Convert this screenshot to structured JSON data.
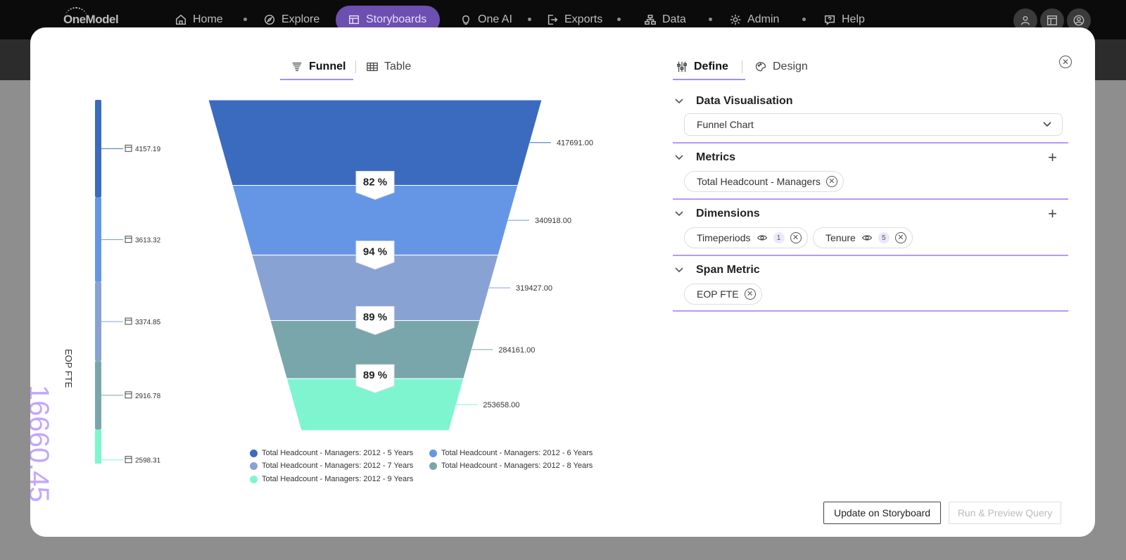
{
  "topnav": {
    "logo": "OneModel",
    "items": [
      {
        "label": "Home",
        "icon": "home-icon"
      },
      {
        "label": "Explore",
        "icon": "compass-icon"
      },
      {
        "label": "Storyboards",
        "icon": "storyboard-icon"
      },
      {
        "label": "One AI",
        "icon": "lightbulb-icon"
      },
      {
        "label": "Exports",
        "icon": "export-icon"
      },
      {
        "label": "Data",
        "icon": "sitemap-icon"
      },
      {
        "label": "Admin",
        "icon": "gear-icon"
      },
      {
        "label": "Help",
        "icon": "help-icon"
      }
    ],
    "active": "Storyboards",
    "colors": {
      "bar": "#0b0b0b",
      "active": "#6c4fb0",
      "text": "#bdbdbd"
    }
  },
  "view_tabs": {
    "funnel": "Funnel",
    "table": "Table",
    "active": "Funnel"
  },
  "panel_tabs": {
    "define": "Define",
    "design": "Design",
    "active": "Define"
  },
  "span_metric_display": {
    "value": "16660.45",
    "label": "EOP FTE",
    "color": "#c4a5ff"
  },
  "chart_data": {
    "type": "funnel",
    "stages": [
      {
        "name": "Total Headcount - Managers: 2012 - 5 Years",
        "value": 417691.0,
        "value_label": "417691.00",
        "span_label": "4157.19",
        "span": 4157.19,
        "color": "#3b6bbf"
      },
      {
        "name": "Total Headcount - Managers: 2012 - 6 Years",
        "value": 340918.0,
        "value_label": "340918.00",
        "span_label": "3613.32",
        "span": 3613.32,
        "color": "#6596e6"
      },
      {
        "name": "Total Headcount - Managers: 2012 - 7 Years",
        "value": 319427.0,
        "value_label": "319427.00",
        "span_label": "3374.85",
        "span": 3374.85,
        "color": "#88a2d3"
      },
      {
        "name": "Total Headcount - Managers: 2012 - 8 Years",
        "value": 284161.0,
        "value_label": "284161.00",
        "span_label": "2916.78",
        "span": 2916.78,
        "color": "#79a6ab"
      },
      {
        "name": "Total Headcount - Managers: 2012 - 9 Years",
        "value": 253658.0,
        "value_label": "253658.00",
        "span_label": "2598.31",
        "span": 2598.31,
        "color": "#7ef5cf"
      }
    ],
    "conversion_labels": [
      "82 %",
      "94 %",
      "89 %",
      "89 %"
    ],
    "legend": [
      "Total Headcount - Managers: 2012 - 5 Years",
      "Total Headcount - Managers: 2012 - 6 Years",
      "Total Headcount - Managers: 2012 - 7 Years",
      "Total Headcount - Managers: 2012 - 8 Years",
      "Total Headcount - Managers: 2012 - 9 Years"
    ]
  },
  "define": {
    "data_visualisation": {
      "title": "Data Visualisation",
      "selected": "Funnel Chart"
    },
    "metrics": {
      "title": "Metrics",
      "chips": [
        "Total Headcount - Managers"
      ]
    },
    "dimensions": {
      "title": "Dimensions",
      "chips": [
        {
          "label": "Timeperiods",
          "count": "1"
        },
        {
          "label": "Tenure",
          "count": "5"
        }
      ]
    },
    "span_metric": {
      "title": "Span Metric",
      "chips": [
        "EOP FTE"
      ]
    }
  },
  "buttons": {
    "update": "Update on Storyboard",
    "run": "Run & Preview Query"
  },
  "accent_color": "#b69af5"
}
